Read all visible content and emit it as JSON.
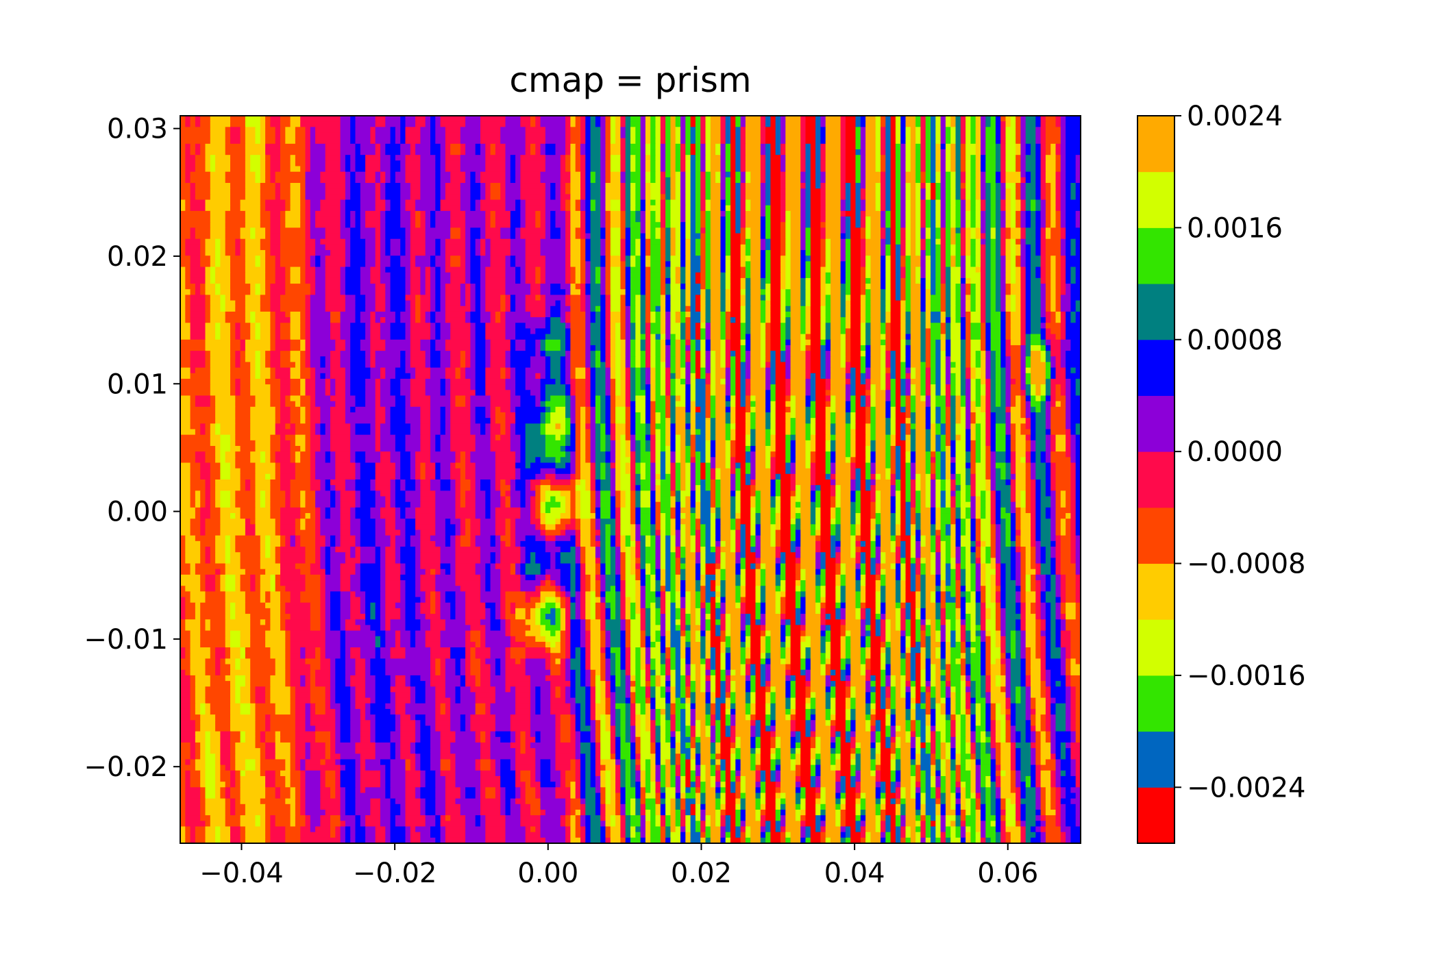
{
  "chart_data": {
    "type": "heatmap",
    "title": "cmap = prism",
    "xlabel": "",
    "ylabel": "",
    "xlim": [
      -0.048,
      0.0695
    ],
    "ylim": [
      -0.026,
      0.031
    ],
    "x_ticks": [
      -0.04,
      -0.02,
      0.0,
      0.02,
      0.04,
      0.06
    ],
    "x_tick_labels": [
      "−0.04",
      "−0.02",
      "0.00",
      "0.02",
      "0.04",
      "0.06"
    ],
    "y_ticks": [
      -0.02,
      -0.01,
      0.0,
      0.01,
      0.02,
      0.03
    ],
    "y_tick_labels": [
      "−0.02",
      "−0.01",
      "0.00",
      "0.01",
      "0.02",
      "0.03"
    ],
    "grid": false,
    "colorbar": {
      "levels": [
        -0.0028,
        -0.0024,
        -0.002,
        -0.0016,
        -0.0012,
        -0.0008,
        -0.0004,
        0.0,
        0.0004,
        0.0008,
        0.0012,
        0.0016,
        0.002,
        0.0024
      ],
      "colors": [
        "#ff0000",
        "#0066c0",
        "#33e500",
        "#d2ff00",
        "#ffcc00",
        "#ff4600",
        "#ff0a4b",
        "#8c00d8",
        "#0000ff",
        "#008080",
        "#33e500",
        "#d2ff00",
        "#ffaa00"
      ],
      "ticks": [
        -0.0024,
        -0.0016,
        -0.0008,
        0.0,
        0.0008,
        0.0016,
        0.0024
      ],
      "tick_labels": [
        "−0.0024",
        "−0.0016",
        "−0.0008",
        "0.0000",
        "0.0008",
        "0.0016",
        "0.0024"
      ]
    },
    "field_description": "interference fringe pattern: near-vertical stripes cycling through the colormap, strongest between x = 0.01 and x = 0.055, fringes curve toward +x at the bottom; isolated blobs along x = 0 at y = -0.009, -0.004, 0.0, 0.004, 0.013"
  }
}
